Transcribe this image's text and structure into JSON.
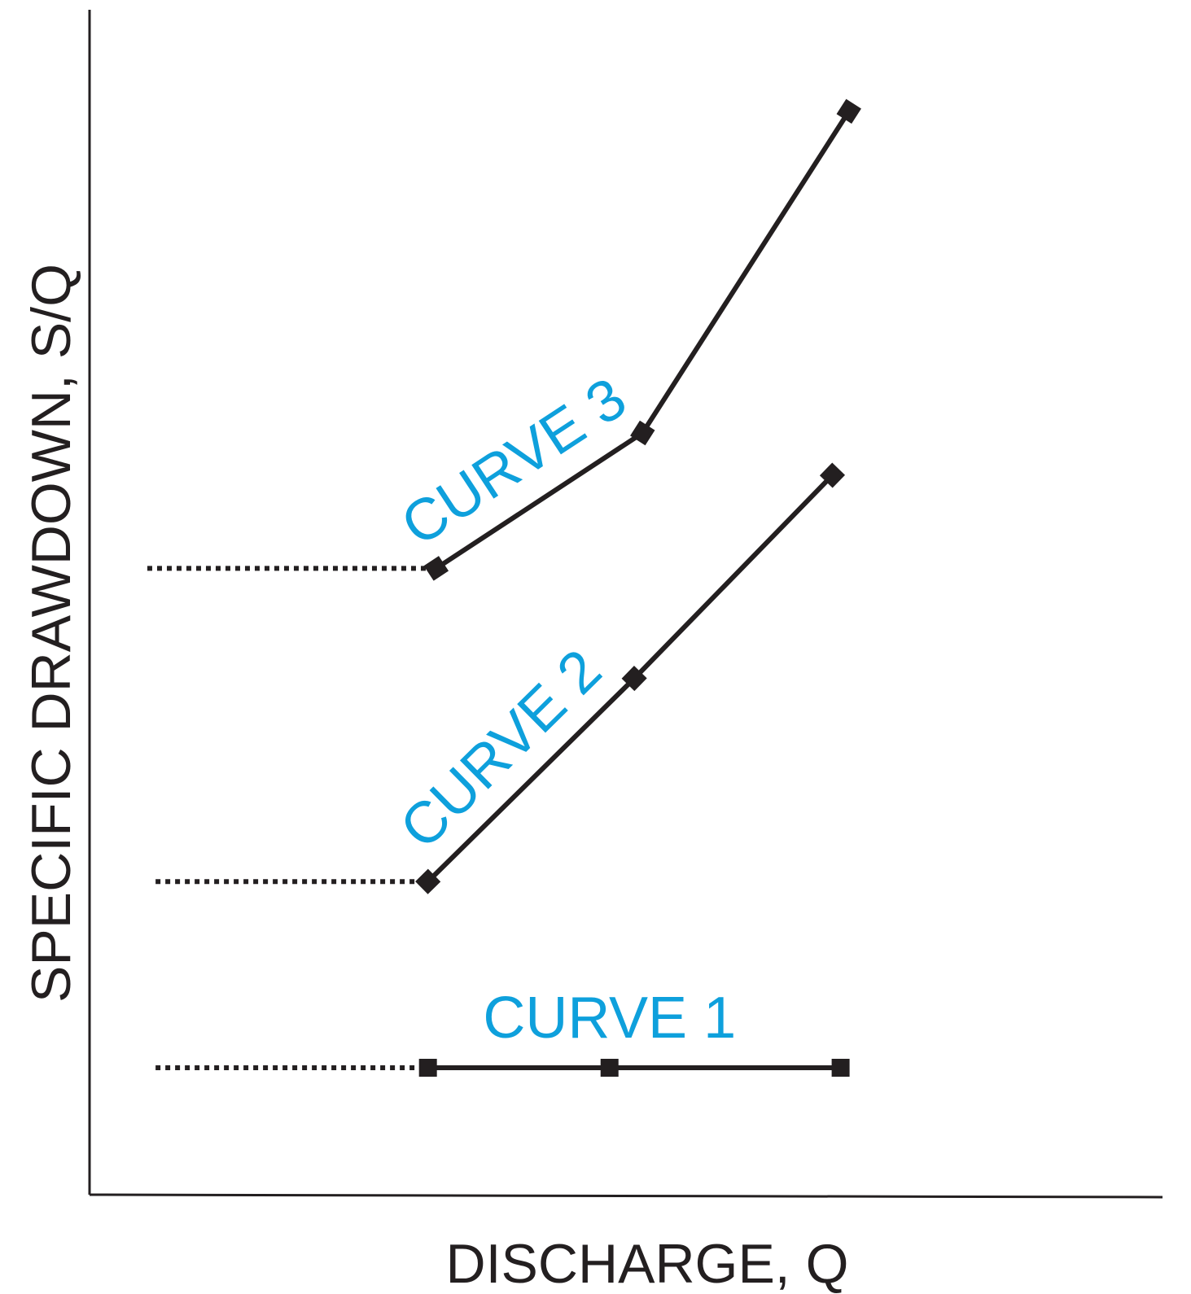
{
  "colors": {
    "ink": "#231f20",
    "label": "#0ea0dc"
  },
  "chart_data": {
    "type": "line",
    "title": "",
    "xlabel": "DISCHARGE, Q",
    "ylabel": "SPECIFIC DRAWDOWN, S/Q",
    "xlim": [
      0,
      13
    ],
    "ylim": [
      0,
      14
    ],
    "grid": false,
    "legend": "none",
    "ticks": "none",
    "series": [
      {
        "name": "CURVE 1",
        "dotted_from_x": 0.8,
        "points": [
          [
            4.1,
            1.5
          ],
          [
            6.3,
            1.5
          ],
          [
            9.1,
            1.5
          ]
        ]
      },
      {
        "name": "CURVE 2",
        "dotted_from_x": 0.8,
        "points": [
          [
            4.1,
            3.7
          ],
          [
            6.6,
            6.1
          ],
          [
            9.0,
            8.5
          ]
        ]
      },
      {
        "name": "CURVE 3",
        "dotted_from_x": 0.7,
        "points": [
          [
            4.2,
            7.4
          ],
          [
            6.7,
            9.0
          ],
          [
            9.2,
            12.8
          ]
        ]
      }
    ]
  }
}
